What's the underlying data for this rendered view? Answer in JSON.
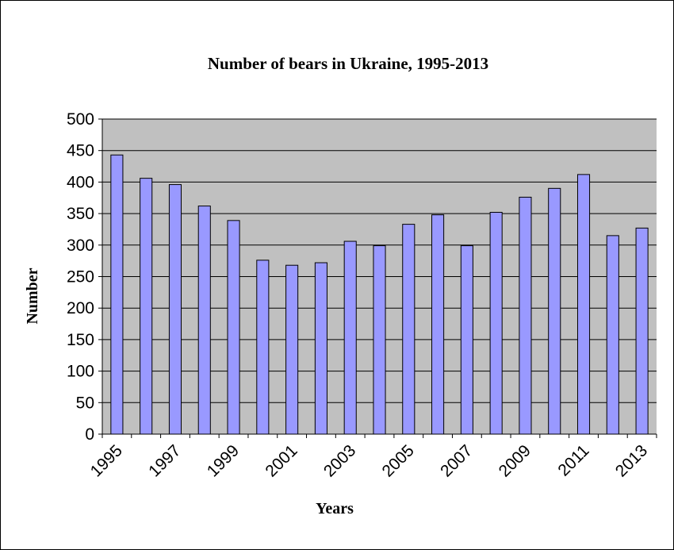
{
  "chart_data": {
    "type": "bar",
    "title": "Number of bears in Ukraine, 1995-2013",
    "xlabel": "Years",
    "ylabel": "Number",
    "ylim": [
      0,
      500
    ],
    "y_ticks": [
      "0",
      "50",
      "100",
      "150",
      "200",
      "250",
      "300",
      "350",
      "400",
      "450",
      "500"
    ],
    "categories": [
      "1995",
      "1996",
      "1997",
      "1998",
      "1999",
      "2000",
      "2001",
      "2002",
      "2003",
      "2004",
      "2005",
      "2006",
      "2007",
      "2008",
      "2009",
      "2010",
      "2011",
      "2012",
      "2013"
    ],
    "x_tick_labels": [
      "1995",
      "1997",
      "1999",
      "2001",
      "2003",
      "2005",
      "2007",
      "2009",
      "2011",
      "2013"
    ],
    "values": [
      443,
      406,
      396,
      362,
      339,
      276,
      268,
      272,
      306,
      299,
      333,
      348,
      299,
      352,
      376,
      390,
      412,
      315,
      327
    ],
    "grid": true,
    "legend": "none",
    "colors": {
      "bar_fill": "#9999ff",
      "bar_stroke": "#000000",
      "plot_background": "#c0c0c0",
      "gridline": "#000000"
    }
  }
}
